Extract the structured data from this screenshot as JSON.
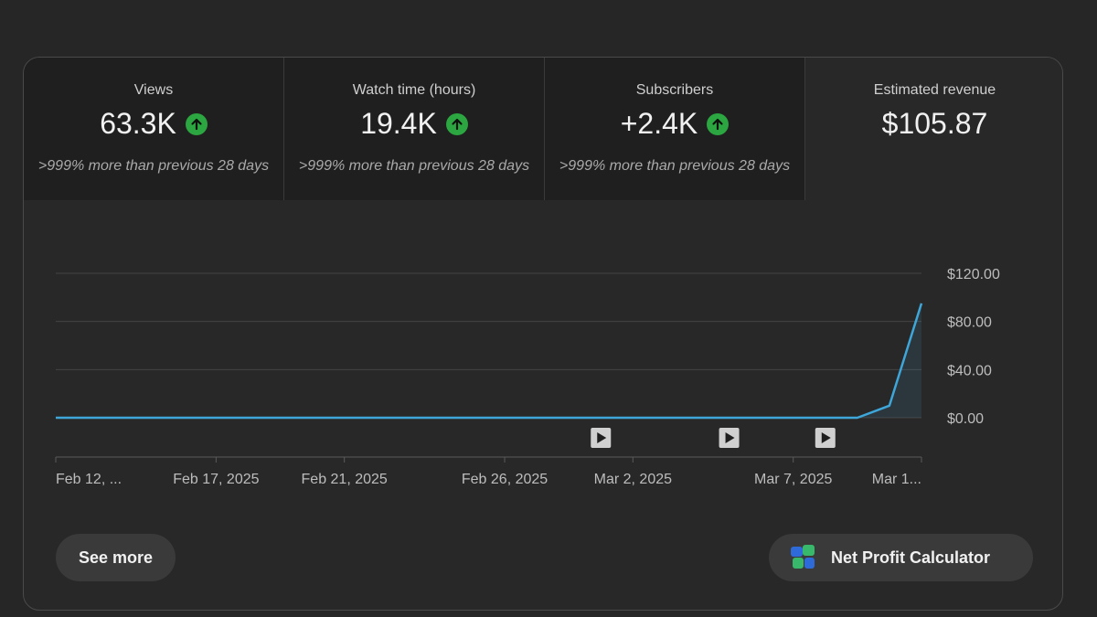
{
  "metrics": [
    {
      "title": "Views",
      "value": "63.3K",
      "compare": ">999% more than previous 28 days",
      "trend_icon": "arrow-up-icon"
    },
    {
      "title": "Watch time (hours)",
      "value": "19.4K",
      "compare": ">999% more than previous 28 days",
      "trend_icon": "arrow-up-icon"
    },
    {
      "title": "Subscribers",
      "value": "+2.4K",
      "compare": ">999% more than previous 28 days",
      "trend_icon": "arrow-up-icon"
    },
    {
      "title": "Estimated revenue",
      "value": "$105.87",
      "selected": true
    }
  ],
  "chart_data": {
    "type": "area",
    "x_tick_labels": [
      "Feb 12, ...",
      "Feb 17, 2025",
      "Feb 21, 2025",
      "Feb 26, 2025",
      "Mar 2, 2025",
      "Mar 7, 2025",
      "Mar 1..."
    ],
    "y_tick_labels": [
      "$120.00",
      "$80.00",
      "$40.00",
      "$0.00"
    ],
    "y_ticks": [
      120,
      80,
      40,
      0
    ],
    "ylim": [
      0,
      120
    ],
    "x": [
      "2025-02-12",
      "2025-02-13",
      "2025-02-14",
      "2025-02-15",
      "2025-02-16",
      "2025-02-17",
      "2025-02-18",
      "2025-02-19",
      "2025-02-20",
      "2025-02-21",
      "2025-02-22",
      "2025-02-23",
      "2025-02-24",
      "2025-02-25",
      "2025-02-26",
      "2025-02-27",
      "2025-02-28",
      "2025-03-01",
      "2025-03-02",
      "2025-03-03",
      "2025-03-04",
      "2025-03-05",
      "2025-03-06",
      "2025-03-07",
      "2025-03-08",
      "2025-03-09",
      "2025-03-10",
      "2025-03-11"
    ],
    "series": [
      {
        "values": [
          0,
          0,
          0,
          0,
          0,
          0,
          0,
          0,
          0,
          0,
          0,
          0,
          0,
          0,
          0,
          0,
          0,
          0,
          0,
          0,
          0,
          0,
          0,
          0,
          0,
          0,
          10,
          95
        ],
        "color": "#3ea6d9"
      }
    ],
    "video_markers": [
      "2025-03-01",
      "2025-03-05",
      "2025-03-08"
    ],
    "grid": true,
    "y_axis_position": "right"
  },
  "buttons": {
    "see_more": "See more",
    "net_profit": "Net Profit Calculator"
  },
  "colors": {
    "trend_up": "#2ba640",
    "line": "#3ea6d9"
  }
}
